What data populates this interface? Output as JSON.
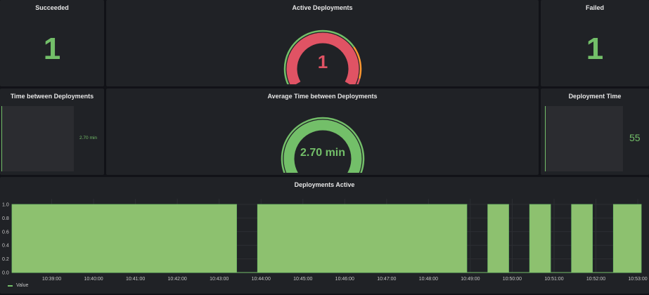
{
  "colors": {
    "green": "#73bf69",
    "fill": "#8dc16f",
    "red": "#e05364",
    "orange": "#ff9830",
    "panel": "#202226",
    "background": "#111217"
  },
  "panels": {
    "succeeded": {
      "title": "Succeeded",
      "value": "1"
    },
    "active": {
      "title": "Active Deployments",
      "value": "1",
      "gauge_fraction": 1,
      "thresholds": [
        "green",
        "orange",
        "red"
      ]
    },
    "failed": {
      "title": "Failed",
      "value": "1"
    },
    "time_between": {
      "title": "Time between Deployments",
      "value": "2.70 min"
    },
    "avg_time": {
      "title": "Average Time between Deployments",
      "value": "2.70 min",
      "gauge_fraction": 1
    },
    "deploy_time": {
      "title": "Deployment Time",
      "value": "55"
    }
  },
  "chart_data": {
    "type": "area",
    "title": "Deployments Active",
    "ylim": [
      0,
      1
    ],
    "yticks": [
      "0.0",
      "0.2",
      "0.4",
      "0.6",
      "0.8",
      "1.0"
    ],
    "xticks": [
      "10:39:00",
      "10:40:00",
      "10:41:00",
      "10:42:00",
      "10:43:00",
      "10:44:00",
      "10:45:00",
      "10:46:00",
      "10:47:00",
      "10:48:00",
      "10:49:00",
      "10:50:00",
      "10:51:00",
      "10:52:00",
      "10:53:00"
    ],
    "xrange": [
      "10:38:03",
      "10:53:05"
    ],
    "grid": true,
    "legend": "bottom-left",
    "series": [
      {
        "name": "Value",
        "active_intervals": [
          [
            "10:38:03",
            "10:43:25"
          ],
          [
            "10:43:55",
            "10:48:55"
          ],
          [
            "10:49:25",
            "10:49:55"
          ],
          [
            "10:50:25",
            "10:50:55"
          ],
          [
            "10:51:25",
            "10:51:55"
          ],
          [
            "10:52:25",
            "10:53:05"
          ]
        ],
        "active_value": 1,
        "inactive_value": 0
      }
    ]
  }
}
